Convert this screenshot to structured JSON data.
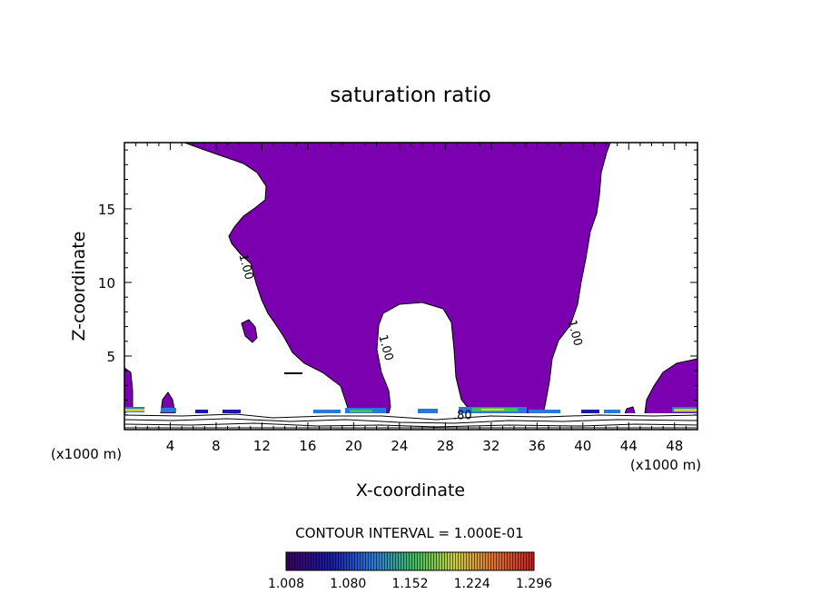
{
  "chart_data": {
    "type": "heatmap",
    "title": "saturation ratio",
    "xlabel": "X-coordinate",
    "ylabel": "Z-coordinate",
    "x_unit_left": "(x1000 m)",
    "x_unit_right": "(x1000 m)",
    "xlim": [
      0,
      50
    ],
    "ylim": [
      0,
      19.5
    ],
    "x_ticks": [
      "4",
      "8",
      "12",
      "16",
      "20",
      "24",
      "28",
      "32",
      "36",
      "40",
      "44",
      "48"
    ],
    "y_ticks": [
      "5",
      "10",
      "15"
    ],
    "contour_labels": [
      {
        "text": "1.00",
        "x": 10.3,
        "z": 11.0
      },
      {
        "text": "1.00",
        "x": 22.5,
        "z": 5.5
      },
      {
        "text": "1.00",
        "x": 39.0,
        "z": 6.5
      },
      {
        "text": ".80",
        "x": 29.5,
        "z": 0.7
      }
    ],
    "contour_interval_label": "CONTOUR INTERVAL = 1.000E-01",
    "colorbar": {
      "tick_labels": [
        "1.008",
        "1.080",
        "1.152",
        "1.224",
        "1.296"
      ],
      "range": [
        1.008,
        1.296
      ]
    },
    "fill_color": "#7a00b0",
    "grid": false
  }
}
